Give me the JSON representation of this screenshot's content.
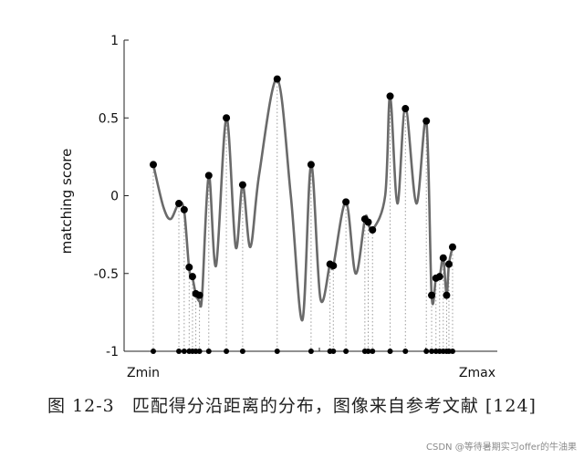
{
  "chart_data": {
    "type": "line",
    "ylabel": "matching score",
    "xlabel": "",
    "ylim": [
      -1,
      1
    ],
    "yticks": [
      1,
      0.5,
      0,
      -0.5,
      -1
    ],
    "x_labels": {
      "left": "Zmin",
      "right": "Zmax"
    },
    "grid": false,
    "legend": "none",
    "series_color": "#6a6a6a",
    "marker_color": "#000000",
    "curve": [
      {
        "x": 0.0,
        "y": 0.2
      },
      {
        "x": 0.03,
        "y": -0.07
      },
      {
        "x": 0.052,
        "y": -0.15
      },
      {
        "x": 0.077,
        "y": -0.05
      },
      {
        "x": 0.093,
        "y": -0.1
      },
      {
        "x": 0.108,
        "y": -0.47
      },
      {
        "x": 0.118,
        "y": -0.53
      },
      {
        "x": 0.128,
        "y": -0.63
      },
      {
        "x": 0.139,
        "y": -0.68
      },
      {
        "x": 0.147,
        "y": -0.64
      },
      {
        "x": 0.167,
        "y": 0.13
      },
      {
        "x": 0.189,
        "y": -0.45
      },
      {
        "x": 0.22,
        "y": 0.5
      },
      {
        "x": 0.248,
        "y": -0.33
      },
      {
        "x": 0.269,
        "y": 0.07
      },
      {
        "x": 0.292,
        "y": -0.33
      },
      {
        "x": 0.319,
        "y": 0.14
      },
      {
        "x": 0.373,
        "y": 0.75
      },
      {
        "x": 0.414,
        "y": 0.0
      },
      {
        "x": 0.449,
        "y": -0.8
      },
      {
        "x": 0.475,
        "y": 0.2
      },
      {
        "x": 0.503,
        "y": -0.66
      },
      {
        "x": 0.532,
        "y": -0.44
      },
      {
        "x": 0.542,
        "y": -0.45
      },
      {
        "x": 0.58,
        "y": -0.04
      },
      {
        "x": 0.609,
        "y": -0.5
      },
      {
        "x": 0.637,
        "y": -0.15
      },
      {
        "x": 0.647,
        "y": -0.17
      },
      {
        "x": 0.66,
        "y": -0.22
      },
      {
        "x": 0.698,
        "y": 0.0
      },
      {
        "x": 0.713,
        "y": 0.64
      },
      {
        "x": 0.735,
        "y": -0.05
      },
      {
        "x": 0.759,
        "y": 0.57
      },
      {
        "x": 0.792,
        "y": -0.05
      },
      {
        "x": 0.822,
        "y": 0.48
      },
      {
        "x": 0.838,
        "y": -0.64
      },
      {
        "x": 0.851,
        "y": -0.53
      },
      {
        "x": 0.862,
        "y": -0.52
      },
      {
        "x": 0.873,
        "y": -0.4
      },
      {
        "x": 0.883,
        "y": -0.64
      },
      {
        "x": 0.89,
        "y": -0.44
      },
      {
        "x": 0.901,
        "y": -0.33
      }
    ],
    "markers": [
      {
        "x": 0.0,
        "y": 0.2
      },
      {
        "x": 0.077,
        "y": -0.05
      },
      {
        "x": 0.093,
        "y": -0.09
      },
      {
        "x": 0.108,
        "y": -0.46
      },
      {
        "x": 0.118,
        "y": -0.52
      },
      {
        "x": 0.128,
        "y": -0.63
      },
      {
        "x": 0.139,
        "y": -0.64
      },
      {
        "x": 0.167,
        "y": 0.13
      },
      {
        "x": 0.22,
        "y": 0.5
      },
      {
        "x": 0.269,
        "y": 0.07
      },
      {
        "x": 0.373,
        "y": 0.75
      },
      {
        "x": 0.475,
        "y": 0.2
      },
      {
        "x": 0.532,
        "y": -0.44
      },
      {
        "x": 0.542,
        "y": -0.45
      },
      {
        "x": 0.58,
        "y": -0.04
      },
      {
        "x": 0.637,
        "y": -0.15
      },
      {
        "x": 0.647,
        "y": -0.17
      },
      {
        "x": 0.66,
        "y": -0.22
      },
      {
        "x": 0.713,
        "y": 0.64
      },
      {
        "x": 0.759,
        "y": 0.56
      },
      {
        "x": 0.822,
        "y": 0.48
      },
      {
        "x": 0.838,
        "y": -0.64
      },
      {
        "x": 0.851,
        "y": -0.53
      },
      {
        "x": 0.862,
        "y": -0.52
      },
      {
        "x": 0.873,
        "y": -0.4
      },
      {
        "x": 0.883,
        "y": -0.64
      },
      {
        "x": 0.89,
        "y": -0.44
      },
      {
        "x": 0.901,
        "y": -0.33
      }
    ]
  },
  "caption": {
    "figure_number": "图 12-3",
    "text": "匹配得分沿距离的分布，图像来自参考文献 [124]"
  },
  "watermark": "CSDN @等待暑期实习offer的牛油果"
}
